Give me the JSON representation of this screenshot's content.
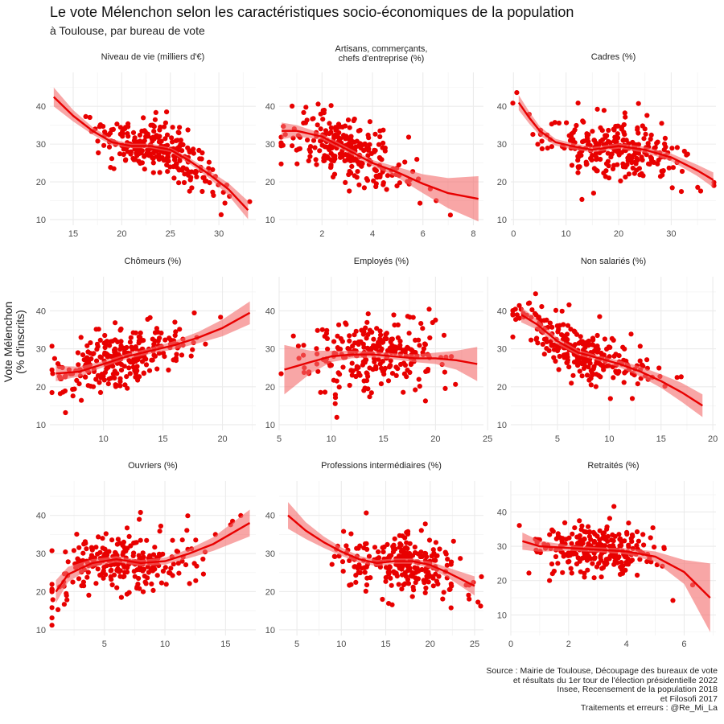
{
  "title": "Le vote Mélenchon selon les caractéristiques socio-économiques de la population",
  "subtitle": "à Toulouse, par bureau de vote",
  "ylabel_lines": [
    "Vote Mélenchon",
    "(% d'inscrits)"
  ],
  "source_lines": [
    "Source : Mairie de Toulouse, Découpage des bureaux de vote",
    "et résultats du 1er tour de l'élection présidentielle 2022",
    "Insee, Recensement de la population 2018",
    "et Filosofi 2017",
    "Traitements et erreurs : @Re_Mi_La"
  ],
  "colors": {
    "point": "#e80000",
    "line": "#e80000",
    "band": "#f46a6a",
    "grid": "#ebebeb"
  },
  "chart_data": [
    {
      "type": "scatter",
      "title_lines": [
        "Niveau de vie (milliers d'€)"
      ],
      "xlim": [
        12.6,
        33.8
      ],
      "ylim": [
        8.5,
        49
      ],
      "xticks": [
        15,
        20,
        25,
        30
      ],
      "yticks": [
        10,
        20,
        30,
        40
      ],
      "x_center": 23.5,
      "x_spread": 2.9,
      "y_at": [
        43.5,
        25
      ],
      "slope": -1.2,
      "noise": 4.2,
      "n_points": 260,
      "seed": 11,
      "trend_x": [
        13,
        15,
        17,
        19,
        21,
        23,
        25,
        27,
        29,
        31,
        33
      ],
      "trend_y": [
        42.5,
        37.5,
        33.5,
        30.5,
        29.5,
        29.5,
        28.5,
        25.5,
        22,
        18,
        12.5
      ],
      "band_half": [
        2.5,
        1.5,
        1,
        0.8,
        0.6,
        0.6,
        0.6,
        0.8,
        1,
        1.6,
        2.4
      ]
    },
    {
      "type": "scatter",
      "title_lines": [
        "Artisans, commerçants,",
        "chefs d'entreprise (%)"
      ],
      "xlim": [
        0.3,
        8.4
      ],
      "ylim": [
        8.5,
        49
      ],
      "xticks": [
        2,
        4,
        6,
        8
      ],
      "yticks": [
        10,
        20,
        30,
        40
      ],
      "x_center": 3.0,
      "x_spread": 1.2,
      "y_at": [
        29
      ],
      "slope": -2.5,
      "noise": 5.2,
      "n_points": 260,
      "seed": 23,
      "trend_x": [
        0.4,
        1,
        2,
        3,
        4,
        5,
        6,
        7,
        8.2
      ],
      "trend_y": [
        33.5,
        33.5,
        32,
        28.5,
        25,
        22.5,
        19.5,
        17,
        15.5
      ],
      "band_half": [
        2.2,
        1.5,
        0.8,
        0.7,
        0.8,
        1.4,
        2.5,
        4,
        6
      ]
    },
    {
      "type": "scatter",
      "title_lines": [
        "Cadres (%)"
      ],
      "xlim": [
        -0.5,
        38.5
      ],
      "ylim": [
        8.5,
        49
      ],
      "xticks": [
        0,
        10,
        20,
        30
      ],
      "yticks": [
        10,
        20,
        30,
        40
      ],
      "x_center": 20,
      "x_spread": 7,
      "y_at": [
        29
      ],
      "slope": -0.12,
      "noise": 5.5,
      "n_points": 260,
      "seed": 37,
      "trend_x": [
        1,
        3,
        5,
        8,
        11,
        15,
        20,
        25,
        30,
        35,
        38
      ],
      "trend_y": [
        41,
        37,
        33.5,
        30.5,
        29.5,
        28.5,
        29.5,
        28.5,
        26.5,
        23,
        20.5
      ],
      "band_half": [
        2,
        1.6,
        1.2,
        0.9,
        0.8,
        0.7,
        0.7,
        0.8,
        1,
        1.5,
        2
      ]
    },
    {
      "type": "scatter",
      "title_lines": [
        "Chômeurs (%)"
      ],
      "xlim": [
        5.5,
        22.8
      ],
      "ylim": [
        8.5,
        49
      ],
      "xticks": [
        10,
        15,
        20
      ],
      "yticks": [
        10,
        20,
        30,
        40
      ],
      "x_center": 11.5,
      "x_spread": 3,
      "y_at": [
        28
      ],
      "slope": 1.05,
      "noise": 5,
      "n_points": 260,
      "seed": 41,
      "trend_x": [
        6,
        8,
        10,
        12,
        14,
        16,
        18,
        20,
        22.3
      ],
      "trend_y": [
        23.5,
        24,
        26,
        28,
        29.5,
        31,
        33,
        35.5,
        39.5
      ],
      "band_half": [
        2,
        1.3,
        0.8,
        0.7,
        0.8,
        1.1,
        1.5,
        2.2,
        3
      ]
    },
    {
      "type": "scatter",
      "title_lines": [
        "Employés (%)"
      ],
      "xlim": [
        5,
        24.6
      ],
      "ylim": [
        8.5,
        49
      ],
      "xticks": [
        5,
        10,
        15,
        20,
        25
      ],
      "yticks": [
        10,
        20,
        30,
        40
      ],
      "x_center": 14,
      "x_spread": 3.3,
      "y_at": [
        28
      ],
      "slope": 0.1,
      "noise": 6.3,
      "n_points": 260,
      "seed": 53,
      "trend_x": [
        5.5,
        8,
        10,
        12,
        14,
        16,
        18,
        20,
        22,
        24
      ],
      "trend_y": [
        24.5,
        26.5,
        28,
        28.5,
        28.5,
        28,
        27.5,
        27.5,
        27,
        26
      ],
      "band_half": [
        6.5,
        3,
        1.5,
        1,
        0.8,
        0.8,
        1,
        1.5,
        2.5,
        4.5
      ]
    },
    {
      "type": "scatter",
      "title_lines": [
        "Non salariés (%)"
      ],
      "xlim": [
        0.5,
        20.3
      ],
      "ylim": [
        8.5,
        49
      ],
      "xticks": [
        5,
        10,
        15,
        20
      ],
      "yticks": [
        10,
        20,
        30,
        40
      ],
      "x_center": 7.5,
      "x_spread": 3.2,
      "y_at": [
        30
      ],
      "slope": -1.25,
      "noise": 4.5,
      "n_points": 260,
      "seed": 67,
      "trend_x": [
        1.5,
        3,
        5,
        7,
        9,
        11,
        13,
        15,
        17,
        19
      ],
      "trend_y": [
        39,
        36.5,
        32,
        29,
        27.5,
        26,
        24,
        21.5,
        18.5,
        15
      ],
      "band_half": [
        2,
        1.4,
        0.9,
        0.7,
        0.7,
        0.9,
        1.3,
        1.8,
        2.5,
        3
      ]
    },
    {
      "type": "scatter",
      "title_lines": [
        "Ouvriers (%)"
      ],
      "xlim": [
        0.5,
        17.5
      ],
      "ylim": [
        8.5,
        49
      ],
      "xticks": [
        5,
        10,
        15
      ],
      "yticks": [
        10,
        20,
        30,
        40
      ],
      "x_center": 7,
      "x_spread": 3.2,
      "y_at": [
        28
      ],
      "slope": 0.9,
      "noise": 5.2,
      "n_points": 260,
      "seed": 71,
      "trend_x": [
        1,
        2,
        4,
        6,
        8,
        10,
        12,
        14,
        17
      ],
      "trend_y": [
        20,
        24.5,
        27.5,
        28.5,
        27.5,
        28,
        30,
        32.5,
        38
      ],
      "band_half": [
        3,
        2,
        1,
        0.8,
        0.8,
        0.9,
        1.2,
        1.8,
        3.5
      ]
    },
    {
      "type": "scatter",
      "title_lines": [
        "Professions intermédiaires (%)"
      ],
      "xlim": [
        3,
        26
      ],
      "ylim": [
        8.5,
        49
      ],
      "xticks": [
        5,
        10,
        15,
        20,
        25
      ],
      "yticks": [
        10,
        20,
        30,
        40
      ],
      "x_center": 17,
      "x_spread": 3.6,
      "y_at": [
        28
      ],
      "slope": -0.35,
      "noise": 5.3,
      "n_points": 260,
      "seed": 83,
      "trend_x": [
        4,
        6,
        8,
        10,
        12,
        14,
        16,
        18,
        20,
        22,
        25
      ],
      "trend_y": [
        40,
        36,
        33,
        30.5,
        28.5,
        27.5,
        28,
        28,
        27,
        25,
        21.5
      ],
      "band_half": [
        3.5,
        2.2,
        1.5,
        1.1,
        0.9,
        0.8,
        0.7,
        0.7,
        0.9,
        1.3,
        2.5
      ]
    },
    {
      "type": "scatter",
      "title_lines": [
        "Retraités (%)"
      ],
      "xlim": [
        0,
        7.1
      ],
      "ylim": [
        4,
        49
      ],
      "xticks": [
        0,
        2,
        4,
        6
      ],
      "yticks": [
        10,
        20,
        30,
        40
      ],
      "x_center": 2.9,
      "x_spread": 1,
      "y_at": [
        29
      ],
      "slope": -0.7,
      "noise": 5.2,
      "n_points": 260,
      "seed": 97,
      "trend_x": [
        0.4,
        1,
        2,
        3,
        4,
        5,
        6,
        6.9
      ],
      "trend_y": [
        31.5,
        30,
        29.5,
        29,
        28.5,
        27,
        22.5,
        15
      ],
      "band_half": [
        2.5,
        1.6,
        0.8,
        0.7,
        0.9,
        1.5,
        3.5,
        10
      ]
    }
  ]
}
